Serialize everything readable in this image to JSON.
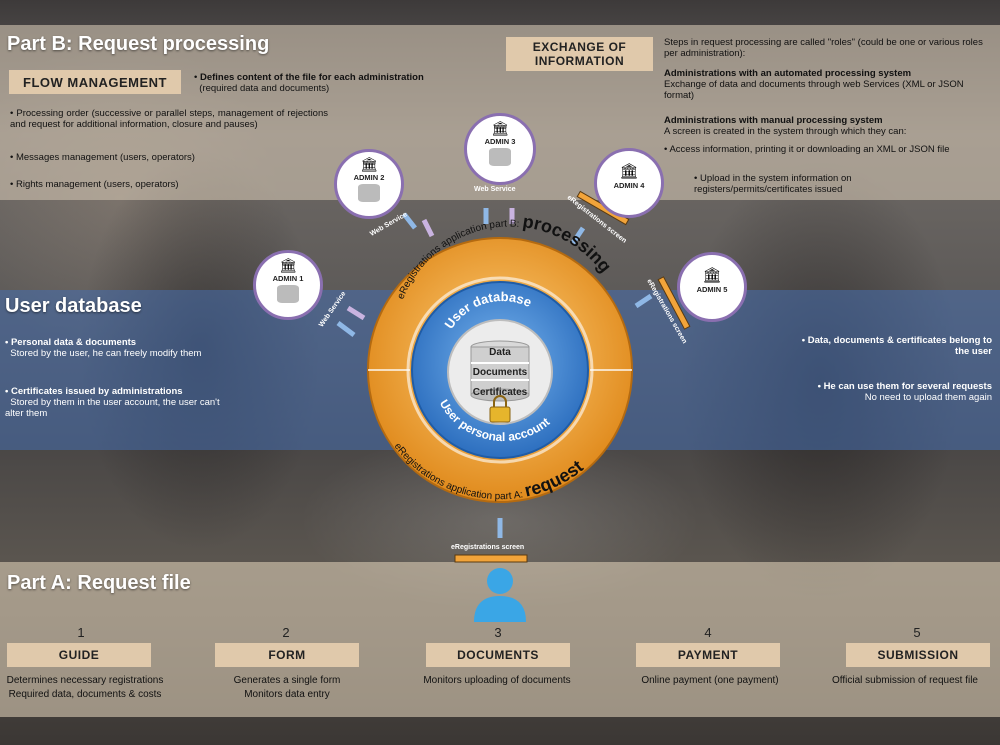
{
  "partB": {
    "title": "Part B: Request processing",
    "flow_tag": "FLOW MANAGEMENT",
    "flow_desc_bold": "Defines content of the file for each administration",
    "flow_desc": "(required data and documents)",
    "bullets": [
      "Processing order (successive or parallel steps, management of rejections and request for additional information, closure and pauses)",
      "Messages management (users, operators)",
      "Rights management (users, operators)"
    ],
    "exchange_tag": "EXCHANGE OF INFORMATION",
    "exchange_lines": [
      "Steps in request processing are called \"roles\" (could be one or various roles per administration):",
      "Administrations with an automated processing system",
      "Exchange of data and documents through web Services (XML or JSON format)",
      "Administrations with manual processing system",
      "A screen is created in the system through which they can:",
      "Access information, printing it or downloading an XML or JSON file",
      "Upload in the system information on registers/permits/certificates issued"
    ]
  },
  "userdb": {
    "title": "User database",
    "left": [
      {
        "bold": "Personal data & documents",
        "text": "Stored by the user, he can freely modify them"
      },
      {
        "bold": "Certificates issued by administrations",
        "text": "Stored by them in the user account, the user can't alter them"
      }
    ],
    "right": [
      "Data, documents & certificates belong to the user",
      "He can use them for several requests",
      "No need to upload them again"
    ]
  },
  "center": {
    "ring_top": "eRegistrations application part B:",
    "ring_top_big": "processing",
    "ring_bottom": "eRegistrations application part A:",
    "ring_bottom_big": "request",
    "inner_top": "User database",
    "inner_bottom": "User personal account",
    "stack": [
      "Data",
      "Documents",
      "Certificates"
    ],
    "screen_label": "eRegistrations screen"
  },
  "admins": [
    {
      "label": "ADMIN 1",
      "conn": "Web Service"
    },
    {
      "label": "ADMIN 2",
      "conn": "Web Service"
    },
    {
      "label": "ADMIN 3",
      "conn": "Web Service"
    },
    {
      "label": "ADMIN 4",
      "conn": "eRegistrations screen"
    },
    {
      "label": "ADMIN 5",
      "conn": "eRegistrations screen"
    }
  ],
  "partA": {
    "title": "Part A: Request file",
    "steps": [
      {
        "num": "1",
        "tag": "GUIDE",
        "desc1": "Determines necessary registrations",
        "desc2": "Required data, documents & costs"
      },
      {
        "num": "2",
        "tag": "FORM",
        "desc1": "Generates a single form",
        "desc2": "Monitors data entry"
      },
      {
        "num": "3",
        "tag": "DOCUMENTS",
        "desc1": "Monitors uploading of documents",
        "desc2": ""
      },
      {
        "num": "4",
        "tag": "PAYMENT",
        "desc1": "Online payment (one payment)",
        "desc2": ""
      },
      {
        "num": "5",
        "tag": "SUBMISSION",
        "desc1": "Official submission of request file",
        "desc2": ""
      }
    ]
  },
  "colors": {
    "ring": "#f2a43a",
    "inner": "#3f86d6",
    "tag": "#e0c9ab",
    "admin_border": "#8a6fb0"
  }
}
